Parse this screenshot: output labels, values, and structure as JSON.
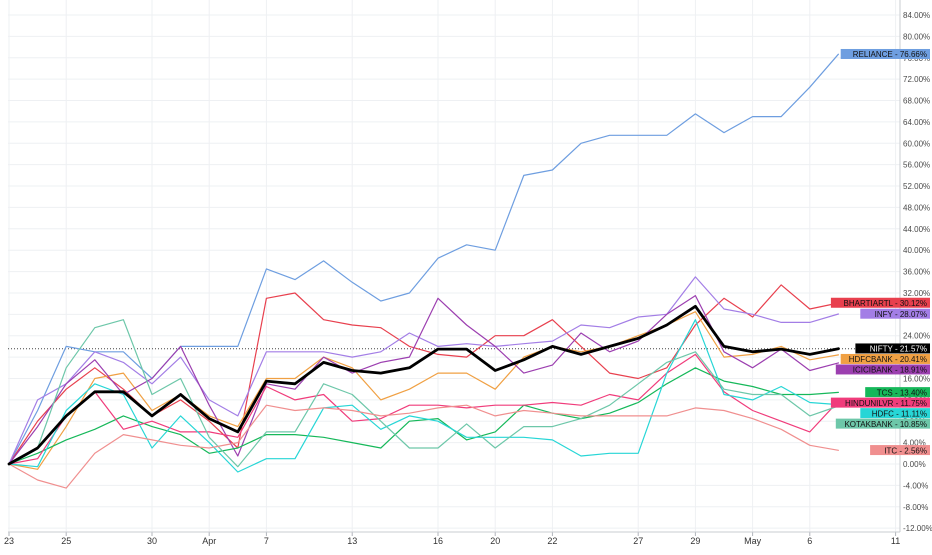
{
  "chart_data": {
    "type": "line",
    "title": "",
    "xlabel": "",
    "ylabel": "",
    "ylim": [
      -12,
      86
    ],
    "y_ticks": [
      "84.00%",
      "80.00%",
      "76.00%",
      "72.00%",
      "68.00%",
      "64.00%",
      "60.00%",
      "56.00%",
      "52.00%",
      "48.00%",
      "44.00%",
      "40.00%",
      "36.00%",
      "32.00%",
      "28.00%",
      "24.00%",
      "20.00%",
      "16.00%",
      "12.00%",
      "8.00%",
      "4.00%",
      "0.00%",
      "-4.00%",
      "-8.00%",
      "-12.00%"
    ],
    "y_tick_values": [
      84,
      80,
      76,
      72,
      68,
      64,
      60,
      56,
      52,
      48,
      44,
      40,
      36,
      32,
      28,
      24,
      20,
      16,
      12,
      8,
      4,
      0,
      -4,
      -8,
      -12
    ],
    "x_ticks": [
      {
        "label": "23",
        "i": 0
      },
      {
        "label": "25",
        "i": 2
      },
      {
        "label": "30",
        "i": 5
      },
      {
        "label": "Apr",
        "i": 7
      },
      {
        "label": "7",
        "i": 9
      },
      {
        "label": "13",
        "i": 12
      },
      {
        "label": "16",
        "i": 15
      },
      {
        "label": "20",
        "i": 17
      },
      {
        "label": "22",
        "i": 19
      },
      {
        "label": "27",
        "i": 22
      },
      {
        "label": "29",
        "i": 24
      },
      {
        "label": "May",
        "i": 26
      },
      {
        "label": "6",
        "i": 28
      },
      {
        "label": "11",
        "i": 31
      }
    ],
    "grid": true,
    "reference_line": 21.57,
    "series": [
      {
        "name": "RELIANCE",
        "value_label": "76.66%",
        "color": "#6e9ee0",
        "width": 1.2,
        "values": [
          0,
          10,
          22,
          21,
          21,
          16,
          22,
          22,
          22,
          36.5,
          34.5,
          38,
          34,
          30.5,
          32,
          38.5,
          41,
          40,
          54,
          55,
          60,
          61.5,
          61.5,
          61.5,
          65.5,
          62,
          65,
          65,
          70.5,
          76.66
        ]
      },
      {
        "name": "BHARTIARTL",
        "value_label": "30.12%",
        "color": "#e8404e",
        "width": 1.2,
        "values": [
          0,
          8,
          14,
          18,
          14,
          9,
          12,
          8,
          3,
          31,
          32,
          27,
          26,
          25.5,
          22,
          20.5,
          20,
          24,
          24,
          27,
          22,
          17,
          16,
          18,
          26,
          31,
          27.5,
          33.5,
          29,
          30.12
        ]
      },
      {
        "name": "INFY",
        "value_label": "28.07%",
        "color": "#a37ee6",
        "width": 1.2,
        "values": [
          0,
          12,
          15,
          21,
          19,
          15,
          20,
          12,
          9,
          21,
          21,
          21,
          20,
          21,
          24.5,
          22,
          22.5,
          22,
          22.5,
          23,
          26,
          25.5,
          27.5,
          28,
          35,
          29,
          28,
          26.5,
          26.5,
          28.07
        ]
      },
      {
        "name": "NIFTY",
        "value_label": "21.57%",
        "color": "#000000",
        "width": 2.8,
        "values": [
          0,
          3,
          9,
          13.5,
          13.5,
          9,
          13,
          8.5,
          6,
          15.5,
          15,
          19,
          17.5,
          17,
          18,
          21.5,
          21.5,
          17.5,
          19.5,
          22,
          20.5,
          22,
          23.5,
          26,
          29.5,
          22,
          21,
          21.5,
          20.5,
          21.57
        ]
      },
      {
        "name": "HDFCBANK",
        "value_label": "20.41%",
        "color": "#f0a043",
        "width": 1.2,
        "values": [
          0,
          -1,
          7,
          16,
          17,
          10,
          13,
          9,
          7,
          16,
          16,
          20,
          18,
          12,
          14,
          17,
          17,
          14,
          20,
          22,
          21,
          22,
          24,
          26,
          28.5,
          20,
          20.5,
          22,
          19.5,
          20.41
        ]
      },
      {
        "name": "ICICIBANK",
        "value_label": "18.91%",
        "color": "#9c3fb0",
        "width": 1.2,
        "values": [
          0,
          7,
          15,
          19.5,
          13,
          16,
          22,
          11,
          1.5,
          15,
          14,
          20,
          17,
          19,
          20,
          31,
          26,
          22,
          17,
          18.5,
          24.5,
          21,
          23,
          28,
          31.5,
          21,
          18,
          21.5,
          17.5,
          18.91
        ]
      },
      {
        "name": "TCS",
        "value_label": "13.40%",
        "color": "#16b85a",
        "width": 1.2,
        "values": [
          0,
          2,
          4.5,
          6.5,
          9,
          7,
          5.5,
          2,
          3,
          5.5,
          5.5,
          5,
          4,
          3,
          8,
          8.5,
          4.5,
          6,
          11,
          9.5,
          8.5,
          9.5,
          11.5,
          15,
          18,
          15.5,
          14.5,
          13,
          13,
          13.4
        ]
      },
      {
        "name": "HINDUNILVR",
        "value_label": "11.75%",
        "color": "#f03c7b",
        "width": 1.2,
        "values": [
          0,
          1,
          9,
          13.5,
          6.5,
          8,
          6,
          6,
          5,
          14.5,
          12,
          13,
          8,
          8.5,
          11,
          11,
          10.5,
          11,
          11,
          11.5,
          11,
          13,
          12,
          17,
          20.5,
          13.5,
          10,
          8,
          6,
          11.75
        ]
      },
      {
        "name": "HDFC",
        "value_label": "11.11%",
        "color": "#27d6d6",
        "width": 1.2,
        "values": [
          0,
          -0.5,
          10,
          15,
          13,
          3,
          9,
          4,
          -1.5,
          1,
          1,
          10.5,
          11,
          6.5,
          9,
          8,
          5,
          5,
          5,
          4.5,
          1.5,
          2,
          2,
          17,
          27,
          13,
          12,
          14.5,
          11.5,
          11.11
        ]
      },
      {
        "name": "KOTAKBANK",
        "value_label": "10.85%",
        "color": "#6dc7a9",
        "width": 1.2,
        "values": [
          0,
          3,
          18,
          25.5,
          27,
          13,
          16,
          5,
          -0.5,
          6,
          6,
          15,
          13,
          8,
          3,
          3,
          7.5,
          3,
          7,
          7,
          8.5,
          11,
          15,
          19,
          21,
          14,
          13,
          13,
          9,
          10.85
        ]
      },
      {
        "name": "ITC",
        "value_label": "2.56%",
        "color": "#f08f8f",
        "width": 1.2,
        "values": [
          0,
          -3,
          -4.5,
          2,
          5.5,
          4.5,
          3.5,
          3,
          4,
          11,
          10,
          10.5,
          10,
          9,
          9.5,
          10.5,
          11,
          9,
          10,
          9.5,
          9,
          9,
          9,
          9,
          10.5,
          10,
          8.5,
          6.5,
          3.5,
          2.56
        ]
      }
    ]
  }
}
